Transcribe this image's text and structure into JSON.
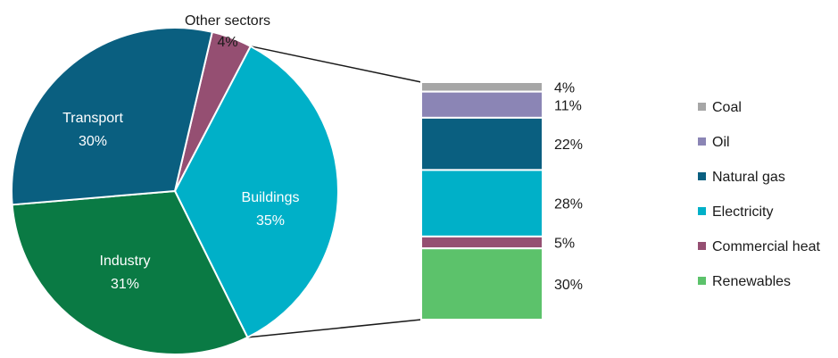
{
  "chart_data": {
    "type": "bar-of-pie",
    "pie": {
      "slices": [
        {
          "label": "Other sectors",
          "value": 4,
          "value_label": "4%",
          "color": "#954f72"
        },
        {
          "label": "Buildings",
          "value": 35,
          "value_label": "35%",
          "color": "#00b0c8"
        },
        {
          "label": "Industry",
          "value": 31,
          "value_label": "31%",
          "color": "#0a7a44"
        },
        {
          "label": "Transport",
          "value": 30,
          "value_label": "30%",
          "color": "#0a5f80"
        }
      ],
      "exploded_slice": "Buildings"
    },
    "bar": {
      "breakdown_of": "Buildings",
      "segments": [
        {
          "name": "Coal",
          "value": 4,
          "value_label": "4%",
          "color": "#a6a6a6"
        },
        {
          "name": "Oil",
          "value": 11,
          "value_label": "11%",
          "color": "#8b85b5"
        },
        {
          "name": "Natural gas",
          "value": 22,
          "value_label": "22%",
          "color": "#0a5f80"
        },
        {
          "name": "Electricity",
          "value": 28,
          "value_label": "28%",
          "color": "#00b0c8"
        },
        {
          "name": "Commercial heat",
          "value": 5,
          "value_label": "5%",
          "color": "#954f72"
        },
        {
          "name": "Renewables",
          "value": 30,
          "value_label": "30%",
          "color": "#5cc26b"
        }
      ]
    },
    "legend": {
      "placement": "right",
      "entries": [
        "Coal",
        "Oil",
        "Natural gas",
        "Electricity",
        "Commercial heat",
        "Renewables"
      ]
    }
  }
}
